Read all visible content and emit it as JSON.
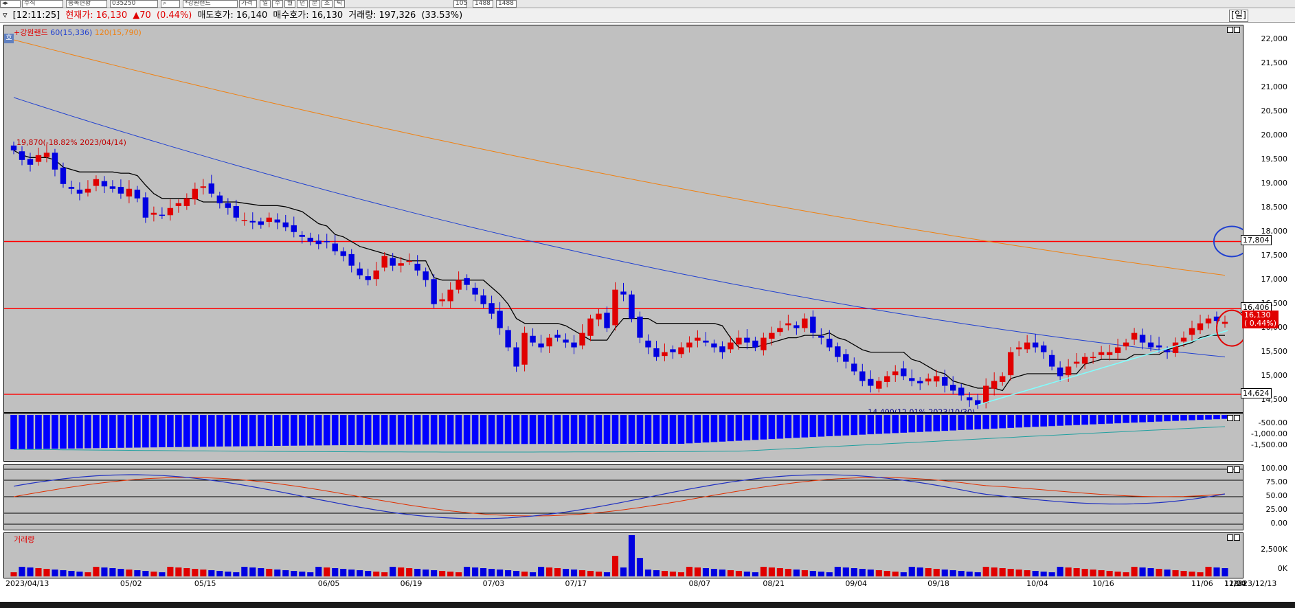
{
  "toolbar": {
    "fields": [
      "주식",
      "종목현황",
      "035250",
      "*강원랜드",
      "가격"
    ],
    "tabs": [
      "일",
      "주",
      "월",
      "년",
      "분",
      "초",
      "틱"
    ],
    "count": "105",
    "total": "1488",
    "total2": "1488"
  },
  "quote": {
    "time": "[12:11:25]",
    "price_label": "현재가:",
    "price": "16,130",
    "change": "▲70",
    "change_pct": "(0.44%)",
    "ask_label": "매도호가:",
    "ask": "16,140",
    "bid_label": "매수호가:",
    "bid": "16,130",
    "volume_label": "거래량:",
    "volume": "197,326",
    "volume_pct": "(33.53%)",
    "period_button": "[일]"
  },
  "price_pane": {
    "legend_name": "+강원랜드",
    "legend_ma60": "60(15,336)",
    "legend_ma120": "120(15,790)",
    "corner_label": "호",
    "high_annotation": "19,870(-18.82% 2023/04/14)",
    "low_annotation": "14,400(12.01% 2023/10/30)",
    "price_pill": "16,130",
    "price_pill_pct": "( 0.44%)",
    "level_labels": [
      "17,804",
      "16,406",
      "14,624"
    ],
    "ticks": [
      "22,000",
      "21,500",
      "21,000",
      "20,500",
      "20,000",
      "19,500",
      "19,000",
      "18,500",
      "18,000",
      "17,500",
      "17,000",
      "16,500",
      "16,000",
      "15,500",
      "15,000",
      "14,500"
    ]
  },
  "macd_pane": {
    "ticks": [
      "-500.00",
      "-1,000.00",
      "-1,500.00"
    ]
  },
  "stoch_pane": {
    "ticks": [
      "100.00",
      "75.00",
      "50.00",
      "25.00",
      "0.00"
    ]
  },
  "volume_pane": {
    "legend": "거래량",
    "ticks": [
      "2,500K",
      "0K"
    ]
  },
  "x_axis": [
    "2023/04/13",
    "05/02",
    "05/15",
    "06/05",
    "06/19",
    "07/03",
    "07/17",
    "08/07",
    "08/21",
    "09/04",
    "09/18",
    "10/04",
    "10/16",
    "11/06",
    "11/20",
    "12/04",
    "2023/12/13"
  ],
  "colors": {
    "up": "#e00000",
    "down": "#0000e0",
    "pane_bg": "#c0c0c0",
    "ma60": "#2040d0",
    "ma120": "#f08010",
    "trend": "#7fffff",
    "level": "#ff0000"
  },
  "chart_data": {
    "type": "candlestick",
    "title": "",
    "series": [
      {
        "name": "60(15,336)",
        "kind": "moving_average"
      },
      {
        "name": "120(15,790)",
        "kind": "moving_average"
      }
    ],
    "ylim": [
      14250,
      22300
    ],
    "horizontal_levels": [
      17804,
      16406,
      14624
    ],
    "closes": [
      19700,
      19500,
      19400,
      19600,
      19650,
      19300,
      19000,
      18900,
      18800,
      18900,
      19100,
      18950,
      18900,
      18800,
      18900,
      18700,
      18300,
      18400,
      18350,
      18500,
      18600,
      18700,
      18900,
      18950,
      18800,
      18600,
      18500,
      18300,
      18250,
      18200,
      18150,
      18300,
      18200,
      18100,
      18000,
      17900,
      17800,
      17750,
      17800,
      17600,
      17500,
      17300,
      17100,
      17000,
      17200,
      17500,
      17300,
      17350,
      17400,
      17200,
      17000,
      16500,
      16600,
      16800,
      17000,
      16900,
      16700,
      16500,
      16300,
      16000,
      15600,
      15200,
      15900,
      15700,
      15600,
      15800,
      15800,
      15700,
      15600,
      15900,
      16200,
      16300,
      16000,
      16800,
      16700,
      16200,
      15800,
      15600,
      15400,
      15500,
      15500,
      15600,
      15700,
      15800,
      15700,
      15600,
      15500,
      15700,
      15800,
      15700,
      15600,
      15800,
      15900,
      16000,
      16100,
      16000,
      16200,
      15900,
      15800,
      15600,
      15400,
      15300,
      15100,
      14900,
      14800,
      14900,
      15000,
      15100,
      15000,
      14900,
      14850,
      14950,
      15000,
      14800,
      14700,
      14600,
      14500,
      14400,
      14800,
      14900,
      15000,
      15500,
      15600,
      15700,
      15600,
      15500,
      15200,
      15000,
      15200,
      15300,
      15400,
      15400,
      15500,
      15500,
      15600,
      15700,
      15900,
      15700,
      15600,
      15600,
      15500,
      15700,
      15800,
      16000,
      16100,
      16200,
      16150,
      16130
    ],
    "stoch_reference_lines": [
      80,
      20
    ]
  }
}
